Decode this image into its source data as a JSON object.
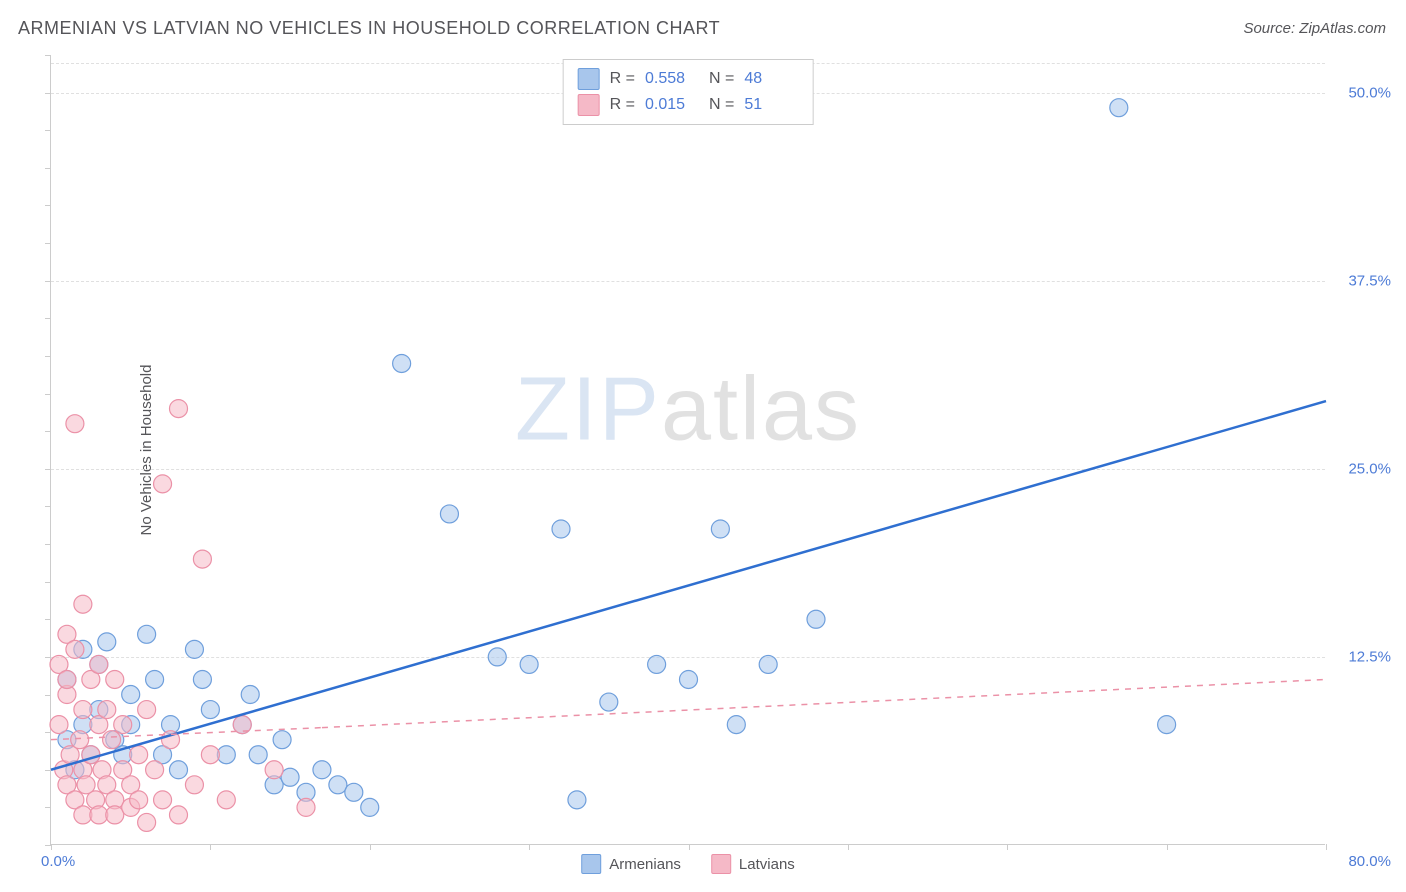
{
  "title": "ARMENIAN VS LATVIAN NO VEHICLES IN HOUSEHOLD CORRELATION CHART",
  "source": "Source: ZipAtlas.com",
  "ylabel": "No Vehicles in Household",
  "watermark_bold": "ZIP",
  "watermark_thin": "atlas",
  "chart": {
    "type": "scatter-with-regression",
    "background_color": "#ffffff",
    "grid_color": "#e0e0e0",
    "axis_color": "#cccccc",
    "tick_label_color": "#4d7bd6",
    "text_color": "#555559",
    "title_fontsize": 18,
    "label_fontsize": 15,
    "xlim": [
      0,
      80
    ],
    "ylim": [
      0,
      52.5
    ],
    "x_tick_step": 10,
    "y_tick_step": 12.5,
    "x_min_label": "0.0%",
    "x_max_label": "80.0%",
    "y_tick_labels": [
      "12.5%",
      "25.0%",
      "37.5%",
      "50.0%"
    ],
    "marker_radius": 9,
    "marker_opacity": 0.55,
    "series": [
      {
        "name": "Armenians",
        "color_fill": "#a8c6ec",
        "color_stroke": "#6f9fdc",
        "line_color": "#2f6fd0",
        "line_dash": "none",
        "line_width": 2.5,
        "R": "0.558",
        "N": "48",
        "trend": {
          "x1": 0,
          "y1": 5.0,
          "x2": 80,
          "y2": 29.5
        },
        "points": [
          [
            1,
            7
          ],
          [
            1,
            11
          ],
          [
            1.5,
            5
          ],
          [
            2,
            8
          ],
          [
            2,
            13
          ],
          [
            2.5,
            6
          ],
          [
            3,
            12
          ],
          [
            3,
            9
          ],
          [
            3.5,
            13.5
          ],
          [
            4,
            7
          ],
          [
            4.5,
            6
          ],
          [
            5,
            10
          ],
          [
            5,
            8
          ],
          [
            6,
            14
          ],
          [
            6.5,
            11
          ],
          [
            7,
            6
          ],
          [
            7.5,
            8
          ],
          [
            8,
            5
          ],
          [
            9,
            13
          ],
          [
            9.5,
            11
          ],
          [
            10,
            9
          ],
          [
            11,
            6
          ],
          [
            12,
            8
          ],
          [
            12.5,
            10
          ],
          [
            13,
            6
          ],
          [
            14,
            4
          ],
          [
            14.5,
            7
          ],
          [
            15,
            4.5
          ],
          [
            16,
            3.5
          ],
          [
            17,
            5
          ],
          [
            18,
            4
          ],
          [
            19,
            3.5
          ],
          [
            20,
            2.5
          ],
          [
            22,
            32
          ],
          [
            25,
            22
          ],
          [
            28,
            12.5
          ],
          [
            30,
            12
          ],
          [
            32,
            21
          ],
          [
            33,
            3
          ],
          [
            35,
            9.5
          ],
          [
            38,
            12
          ],
          [
            40,
            11
          ],
          [
            42,
            21
          ],
          [
            43,
            8
          ],
          [
            45,
            12
          ],
          [
            48,
            15
          ],
          [
            67,
            49
          ],
          [
            70,
            8
          ]
        ]
      },
      {
        "name": "Latvians",
        "color_fill": "#f5b9c7",
        "color_stroke": "#eb91a7",
        "line_color": "#eb91a7",
        "line_dash": "6 6",
        "line_width": 1.5,
        "R": "0.015",
        "N": "51",
        "trend": {
          "x1": 0,
          "y1": 7.0,
          "x2": 17,
          "y2": 7.8
        },
        "trend_dash": {
          "x1": 17,
          "y1": 7.8,
          "x2": 80,
          "y2": 11.0
        },
        "points": [
          [
            0.5,
            8
          ],
          [
            0.5,
            12
          ],
          [
            0.8,
            5
          ],
          [
            1,
            14
          ],
          [
            1,
            4
          ],
          [
            1,
            10
          ],
          [
            1,
            11
          ],
          [
            1.2,
            6
          ],
          [
            1.5,
            3
          ],
          [
            1.5,
            13
          ],
          [
            1.5,
            28
          ],
          [
            1.8,
            7
          ],
          [
            2,
            2
          ],
          [
            2,
            5
          ],
          [
            2,
            9
          ],
          [
            2,
            16
          ],
          [
            2.2,
            4
          ],
          [
            2.5,
            6
          ],
          [
            2.5,
            11
          ],
          [
            2.8,
            3
          ],
          [
            3,
            8
          ],
          [
            3,
            2
          ],
          [
            3,
            12
          ],
          [
            3.2,
            5
          ],
          [
            3.5,
            4
          ],
          [
            3.5,
            9
          ],
          [
            3.8,
            7
          ],
          [
            4,
            3
          ],
          [
            4,
            2
          ],
          [
            4,
            11
          ],
          [
            4.5,
            5
          ],
          [
            4.5,
            8
          ],
          [
            5,
            4
          ],
          [
            5,
            2.5
          ],
          [
            5.5,
            6
          ],
          [
            5.5,
            3
          ],
          [
            6,
            9
          ],
          [
            6,
            1.5
          ],
          [
            6.5,
            5
          ],
          [
            7,
            3
          ],
          [
            7,
            24
          ],
          [
            7.5,
            7
          ],
          [
            8,
            2
          ],
          [
            8,
            29
          ],
          [
            9,
            4
          ],
          [
            9.5,
            19
          ],
          [
            10,
            6
          ],
          [
            11,
            3
          ],
          [
            12,
            8
          ],
          [
            14,
            5
          ],
          [
            16,
            2.5
          ]
        ]
      }
    ],
    "legend_bottom": [
      "Armenians",
      "Latvians"
    ],
    "stats_labels": {
      "R": "R =",
      "N": "N ="
    }
  }
}
